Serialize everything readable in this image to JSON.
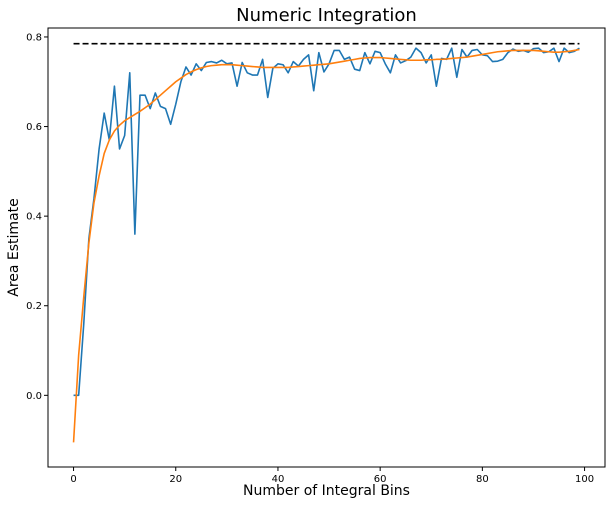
{
  "chart_data": {
    "type": "line",
    "title": "Numeric Integration",
    "xlabel": "Number of Integral Bins",
    "ylabel": "Area Estimate",
    "xlim": [
      -5,
      104
    ],
    "ylim": [
      -0.16,
      0.82
    ],
    "xticks": [
      0,
      20,
      40,
      60,
      80,
      100
    ],
    "yticks": [
      0.0,
      0.2,
      0.4,
      0.6,
      0.8
    ],
    "xtick_labels": [
      "0",
      "20",
      "40",
      "60",
      "80",
      "100"
    ],
    "ytick_labels": [
      "0.0",
      "0.2",
      "0.4",
      "0.6",
      "0.8"
    ],
    "grid": false,
    "legend": "none",
    "series": [
      {
        "color": "#1f77b4",
        "x": [
          0,
          1,
          2,
          3,
          4,
          5,
          6,
          7,
          8,
          9,
          10,
          11,
          12,
          13,
          14,
          15,
          16,
          17,
          18,
          19,
          20,
          21,
          22,
          23,
          24,
          25,
          26,
          27,
          28,
          29,
          30,
          31,
          32,
          33,
          34,
          35,
          36,
          37,
          38,
          39,
          40,
          41,
          42,
          43,
          44,
          45,
          46,
          47,
          48,
          49,
          50,
          51,
          52,
          53,
          54,
          55,
          56,
          57,
          58,
          59,
          60,
          61,
          62,
          63,
          64,
          65,
          66,
          67,
          68,
          69,
          70,
          71,
          72,
          73,
          74,
          75,
          76,
          77,
          78,
          79,
          80,
          81,
          82,
          83,
          84,
          85,
          86,
          87,
          88,
          89,
          90,
          91,
          92,
          93,
          94,
          95,
          96,
          97,
          98,
          99
        ],
        "y": [
          0.0,
          0.0,
          0.16,
          0.35,
          0.44,
          0.55,
          0.63,
          0.57,
          0.69,
          0.55,
          0.58,
          0.72,
          0.36,
          0.67,
          0.67,
          0.64,
          0.675,
          0.645,
          0.64,
          0.605,
          0.65,
          0.7,
          0.733,
          0.715,
          0.74,
          0.725,
          0.743,
          0.745,
          0.742,
          0.748,
          0.74,
          0.742,
          0.69,
          0.743,
          0.72,
          0.715,
          0.715,
          0.75,
          0.665,
          0.73,
          0.74,
          0.738,
          0.72,
          0.745,
          0.735,
          0.75,
          0.76,
          0.68,
          0.765,
          0.722,
          0.74,
          0.77,
          0.77,
          0.75,
          0.755,
          0.728,
          0.725,
          0.765,
          0.74,
          0.768,
          0.765,
          0.74,
          0.72,
          0.76,
          0.742,
          0.747,
          0.755,
          0.775,
          0.765,
          0.742,
          0.76,
          0.69,
          0.752,
          0.75,
          0.775,
          0.71,
          0.772,
          0.755,
          0.77,
          0.772,
          0.76,
          0.758,
          0.745,
          0.746,
          0.75,
          0.765,
          0.773,
          0.768,
          0.77,
          0.766,
          0.774,
          0.775,
          0.765,
          0.767,
          0.775,
          0.745,
          0.775,
          0.765,
          0.768,
          0.775
        ]
      },
      {
        "color": "#ff7f0e",
        "x": [
          0,
          1,
          2,
          3,
          4,
          5,
          6,
          7,
          8,
          9,
          10,
          11,
          12,
          13,
          14,
          15,
          16,
          17,
          18,
          19,
          20,
          21,
          22,
          23,
          24,
          25,
          26,
          27,
          28,
          29,
          30,
          31,
          32,
          33,
          34,
          35,
          36,
          37,
          38,
          39,
          40,
          41,
          42,
          43,
          44,
          45,
          46,
          47,
          48,
          49,
          50,
          51,
          52,
          53,
          54,
          55,
          56,
          57,
          58,
          59,
          60,
          61,
          62,
          63,
          64,
          65,
          66,
          67,
          68,
          69,
          70,
          71,
          72,
          73,
          74,
          75,
          76,
          77,
          78,
          79,
          80,
          81,
          82,
          83,
          84,
          85,
          86,
          87,
          88,
          89,
          90,
          91,
          92,
          93,
          94,
          95,
          96,
          97,
          98,
          99
        ],
        "y": [
          -0.105,
          0.09,
          0.22,
          0.34,
          0.43,
          0.49,
          0.54,
          0.57,
          0.59,
          0.603,
          0.613,
          0.62,
          0.627,
          0.634,
          0.642,
          0.65,
          0.66,
          0.67,
          0.68,
          0.69,
          0.7,
          0.708,
          0.716,
          0.722,
          0.727,
          0.731,
          0.734,
          0.736,
          0.737,
          0.738,
          0.738,
          0.738,
          0.737,
          0.736,
          0.735,
          0.734,
          0.733,
          0.732,
          0.732,
          0.732,
          0.732,
          0.732,
          0.732,
          0.733,
          0.734,
          0.735,
          0.736,
          0.737,
          0.738,
          0.739,
          0.74,
          0.742,
          0.744,
          0.746,
          0.748,
          0.75,
          0.752,
          0.753,
          0.754,
          0.754,
          0.754,
          0.753,
          0.752,
          0.751,
          0.75,
          0.749,
          0.748,
          0.748,
          0.748,
          0.749,
          0.749,
          0.75,
          0.75,
          0.751,
          0.752,
          0.753,
          0.754,
          0.755,
          0.757,
          0.759,
          0.761,
          0.763,
          0.765,
          0.767,
          0.768,
          0.769,
          0.77,
          0.77,
          0.77,
          0.77,
          0.77,
          0.769,
          0.768,
          0.767,
          0.766,
          0.766,
          0.767,
          0.768,
          0.77,
          0.772
        ]
      },
      {
        "color": "#000000",
        "dashed": true,
        "x": [
          0,
          99
        ],
        "y": [
          0.785,
          0.785
        ]
      }
    ]
  }
}
